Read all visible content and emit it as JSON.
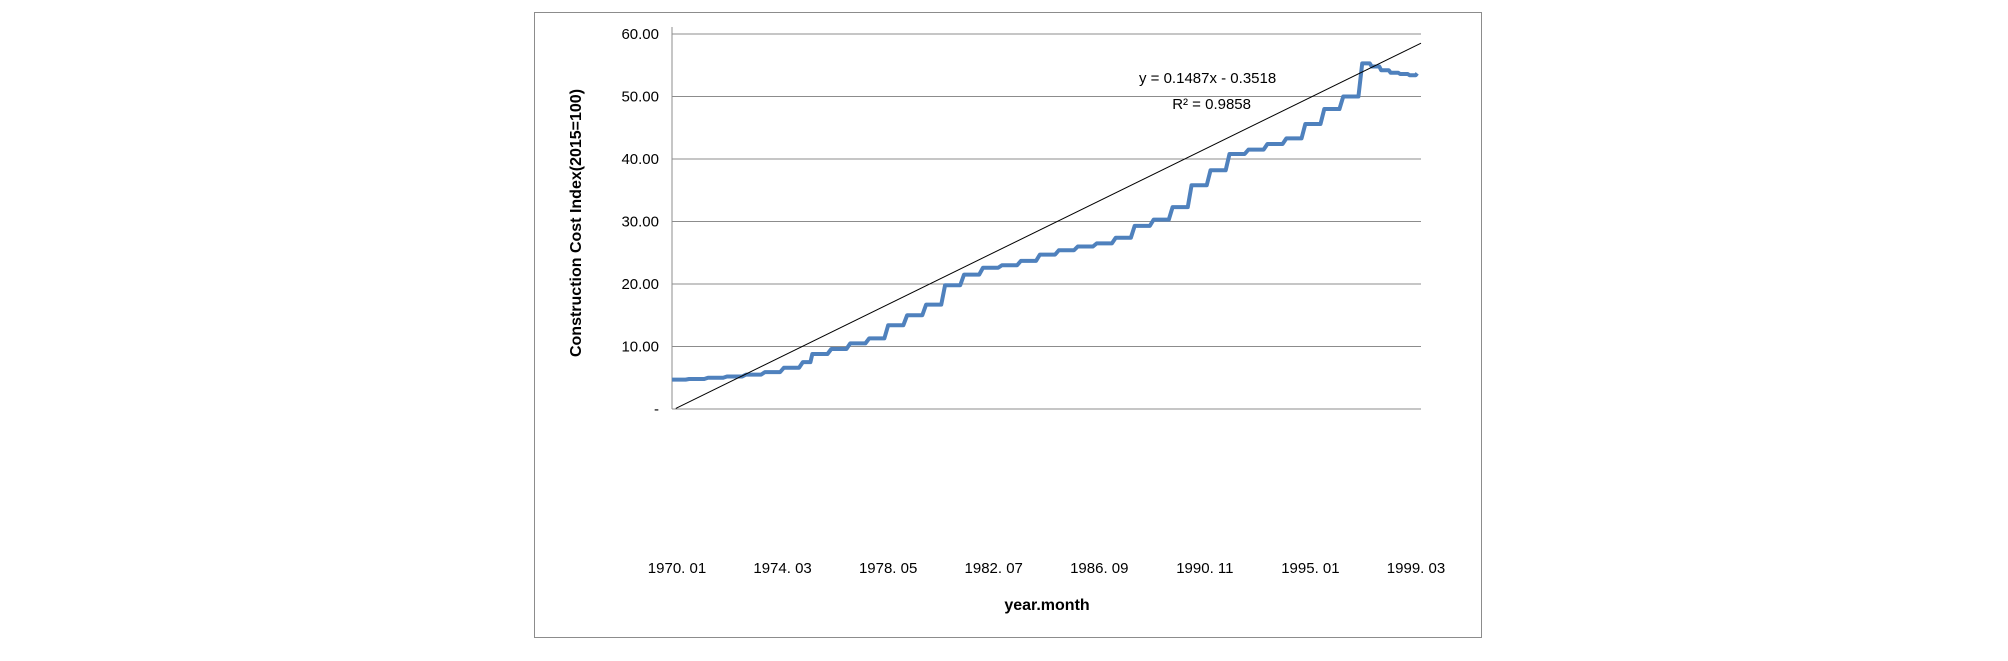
{
  "chart_data": {
    "type": "line",
    "title": "",
    "xlabel": "year.month",
    "ylabel": "Construction Cost Index(2015=100)",
    "ylim": [
      0,
      60
    ],
    "y_ticks": [
      "-",
      "10.00",
      "20.00",
      "30.00",
      "40.00",
      "50.00",
      "60.00"
    ],
    "x_tick_labels": [
      "1970. 01",
      "1974. 03",
      "1978. 05",
      "1982. 07",
      "1986. 09",
      "1990. 11",
      "1995. 01",
      "1999. 03"
    ],
    "grid": "horizontal",
    "legend": "none",
    "series_color": "#4f81bd",
    "trend_color": "#000000",
    "trendline": {
      "equation": "y = 0.1487x - 0.3518",
      "r2": "R² = 0.9858",
      "slope": 0.1487,
      "intercept": -0.3518
    },
    "series": [
      {
        "x": [
          1,
          10,
          20,
          30,
          40,
          50,
          60,
          70,
          75,
          85,
          95,
          105,
          115,
          125,
          135,
          145,
          155,
          165,
          175,
          185,
          195,
          205,
          215,
          225,
          235,
          245,
          255,
          265,
          275,
          285,
          295,
          305,
          315,
          325,
          335,
          345,
          355,
          365
        ],
        "y": [
          4.7,
          4.8,
          5.0,
          5.2,
          5.5,
          5.9,
          6.6,
          7.5,
          8.8,
          9.6,
          10.5,
          11.3,
          13.4,
          15.0,
          16.7,
          19.8,
          21.5,
          22.6,
          23.0,
          23.7,
          24.7,
          25.4,
          26.0,
          26.5,
          27.4,
          29.3,
          30.3,
          32.3,
          35.8,
          38.2,
          40.8,
          41.5,
          42.4,
          43.3,
          45.6,
          48.0,
          50.0,
          55.3
        ]
      }
    ],
    "series_tail": {
      "x": [
        370,
        375,
        380,
        385,
        390,
        394
      ],
      "y": [
        54.8,
        54.2,
        53.8,
        53.6,
        53.4,
        53.7
      ]
    }
  }
}
